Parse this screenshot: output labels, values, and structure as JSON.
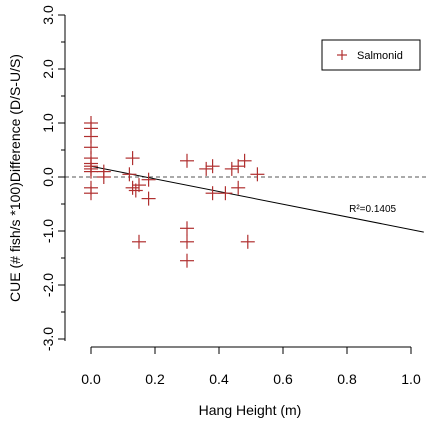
{
  "chart_data": {
    "type": "scatter",
    "xlabel": "Hang Height (m)",
    "ylabel": "CUE (# fish/s *100)Difference (D/S-U/S)",
    "xlim": [
      -0.02,
      1.04
    ],
    "ylim": [
      -3.2,
      3.2
    ],
    "x_ticks": [
      {
        "value": 0.0,
        "label": "0.0"
      },
      {
        "value": 0.2,
        "label": "0.2"
      },
      {
        "value": 0.4,
        "label": "0.4"
      },
      {
        "value": 0.6,
        "label": "0.6"
      },
      {
        "value": 0.8,
        "label": "0.8"
      },
      {
        "value": 1.0,
        "label": "1.0"
      }
    ],
    "y_ticks": [
      {
        "value": -3.0,
        "label": "-3.0"
      },
      {
        "value": -2.0,
        "label": "-2.0"
      },
      {
        "value": -1.0,
        "label": "-1.0"
      },
      {
        "value": 0.0,
        "label": "0.0"
      },
      {
        "value": 1.0,
        "label": "1.0"
      },
      {
        "value": 2.0,
        "label": "2.0"
      },
      {
        "value": 3.0,
        "label": "3.0"
      }
    ],
    "reference_line": {
      "y": 0,
      "style": "dashed",
      "color": "#555555"
    },
    "regression_line": {
      "x": [
        0.0,
        1.04
      ],
      "y": [
        0.2,
        -1.02
      ],
      "color": "#000000"
    },
    "annotation": {
      "text": "R²=0.1405",
      "x": 0.88,
      "y": -0.65
    },
    "legend": {
      "position": "top-right",
      "entries": [
        {
          "label": "Salmonid",
          "marker": "+",
          "color": "#b03030"
        }
      ]
    },
    "series": [
      {
        "name": "Salmonid",
        "color": "#b03030",
        "marker": "+",
        "points": [
          [
            0.0,
            1.0
          ],
          [
            0.0,
            0.9
          ],
          [
            0.0,
            0.75
          ],
          [
            0.0,
            0.55
          ],
          [
            0.0,
            0.35
          ],
          [
            0.0,
            0.25
          ],
          [
            0.0,
            0.2
          ],
          [
            0.0,
            0.15
          ],
          [
            0.0,
            0.1
          ],
          [
            0.0,
            -0.2
          ],
          [
            0.0,
            -0.3
          ],
          [
            0.04,
            0.1
          ],
          [
            0.04,
            0.0
          ],
          [
            0.12,
            0.05
          ],
          [
            0.13,
            0.35
          ],
          [
            0.13,
            -0.2
          ],
          [
            0.14,
            -0.25
          ],
          [
            0.15,
            -0.15
          ],
          [
            0.15,
            -1.2
          ],
          [
            0.18,
            -0.05
          ],
          [
            0.18,
            -0.4
          ],
          [
            0.3,
            0.3
          ],
          [
            0.3,
            -0.95
          ],
          [
            0.3,
            -1.2
          ],
          [
            0.3,
            -1.55
          ],
          [
            0.36,
            0.15
          ],
          [
            0.38,
            0.2
          ],
          [
            0.38,
            -0.3
          ],
          [
            0.42,
            -0.3
          ],
          [
            0.44,
            0.15
          ],
          [
            0.46,
            0.2
          ],
          [
            0.46,
            -0.2
          ],
          [
            0.48,
            0.3
          ],
          [
            0.49,
            -1.2
          ],
          [
            0.52,
            0.05
          ]
        ]
      }
    ]
  }
}
